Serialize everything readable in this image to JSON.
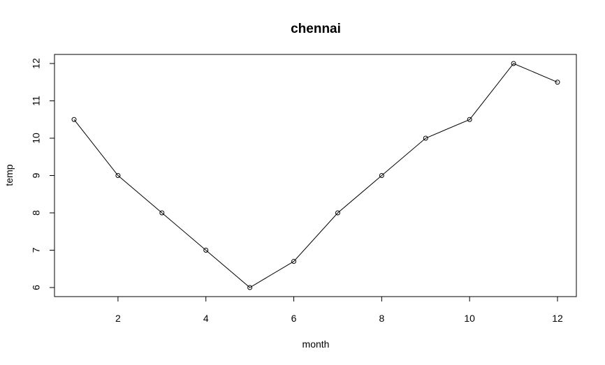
{
  "chart_data": {
    "type": "line",
    "title": "chennai",
    "xlabel": "month",
    "ylabel": "temp",
    "x": [
      1,
      2,
      3,
      4,
      5,
      6,
      7,
      8,
      9,
      10,
      11,
      12
    ],
    "series": [
      {
        "values": [
          10.5,
          9,
          8,
          7,
          6,
          6.7,
          8,
          9,
          10,
          10.5,
          12,
          11.5
        ]
      }
    ],
    "xlim": [
      1,
      12
    ],
    "ylim": [
      6,
      12
    ],
    "xticks": [
      2,
      4,
      6,
      8,
      10,
      12
    ],
    "yticks": [
      6,
      7,
      8,
      9,
      10,
      11,
      12
    ],
    "markers": "open-circle",
    "grid": false,
    "legend": "none"
  }
}
